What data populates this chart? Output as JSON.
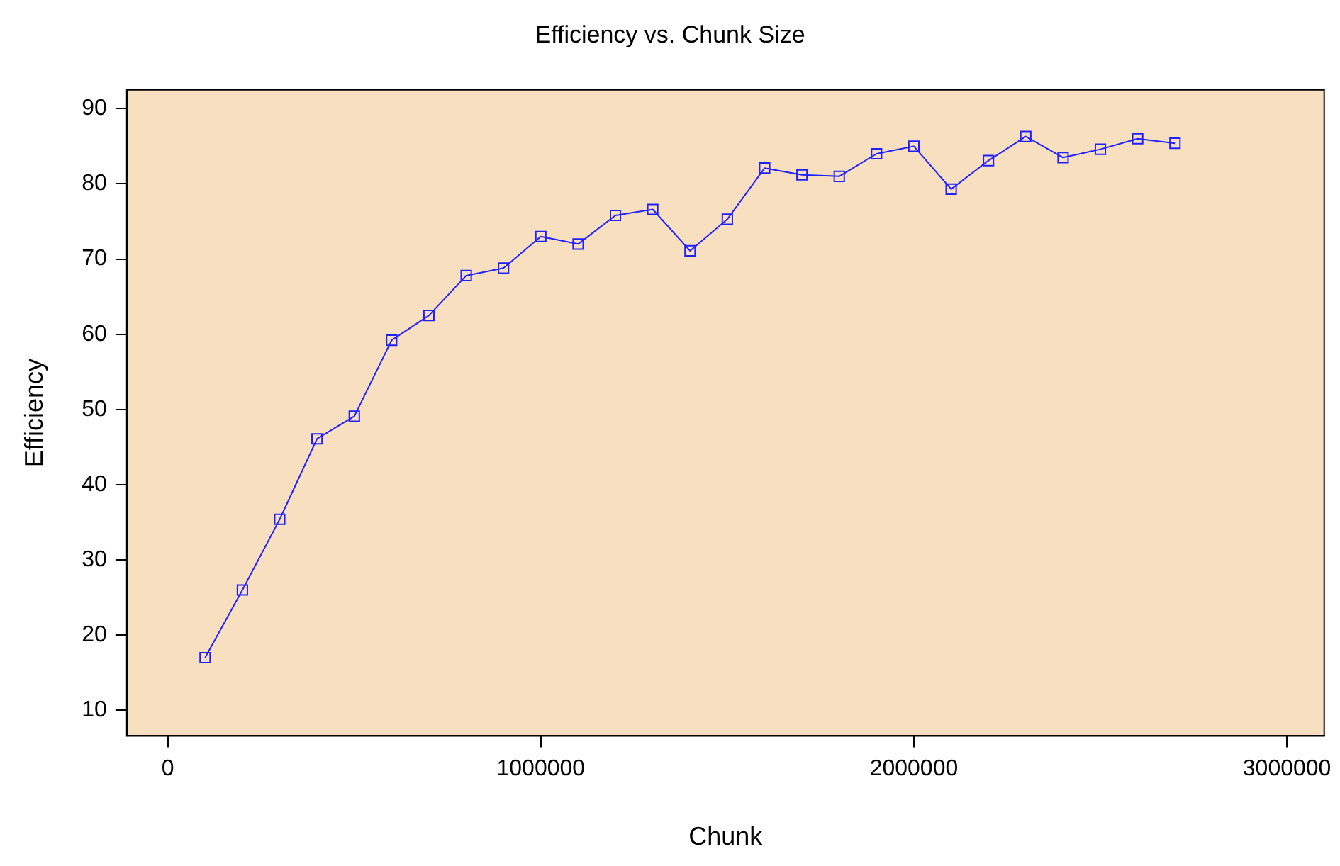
{
  "chart_data": {
    "type": "line",
    "title": "Efficiency vs. Chunk Size",
    "xlabel": "Chunk",
    "ylabel": "Efficiency",
    "x": [
      100000,
      200000,
      300000,
      400000,
      500000,
      600000,
      700000,
      800000,
      900000,
      1000000,
      1100000,
      1200000,
      1300000,
      1400000,
      1500000,
      1600000,
      1700000,
      1800000,
      1900000,
      2000000,
      2100000,
      2200000,
      2300000,
      2400000,
      2500000,
      2600000,
      2700000
    ],
    "series": [
      {
        "color": "#2020ff",
        "values": [
          17,
          26,
          35.4,
          46.1,
          49.1,
          59.2,
          62.5,
          67.8,
          68.8,
          73,
          72,
          75.8,
          76.6,
          71.1,
          75.3,
          82.1,
          81.2,
          81,
          84,
          85,
          79.3,
          83.1,
          86.3,
          83.5,
          84.6,
          86,
          85.4
        ]
      }
    ],
    "xlim": [
      -110000,
      3100000
    ],
    "xticks": [
      0,
      1000000,
      2000000,
      3000000
    ],
    "ylim": [
      6.6,
      92.5
    ],
    "yticks": [
      10,
      20,
      30,
      40,
      50,
      60,
      70,
      80,
      90
    ],
    "grid": false,
    "legend": false,
    "marker": "square",
    "line_style": "solid"
  }
}
